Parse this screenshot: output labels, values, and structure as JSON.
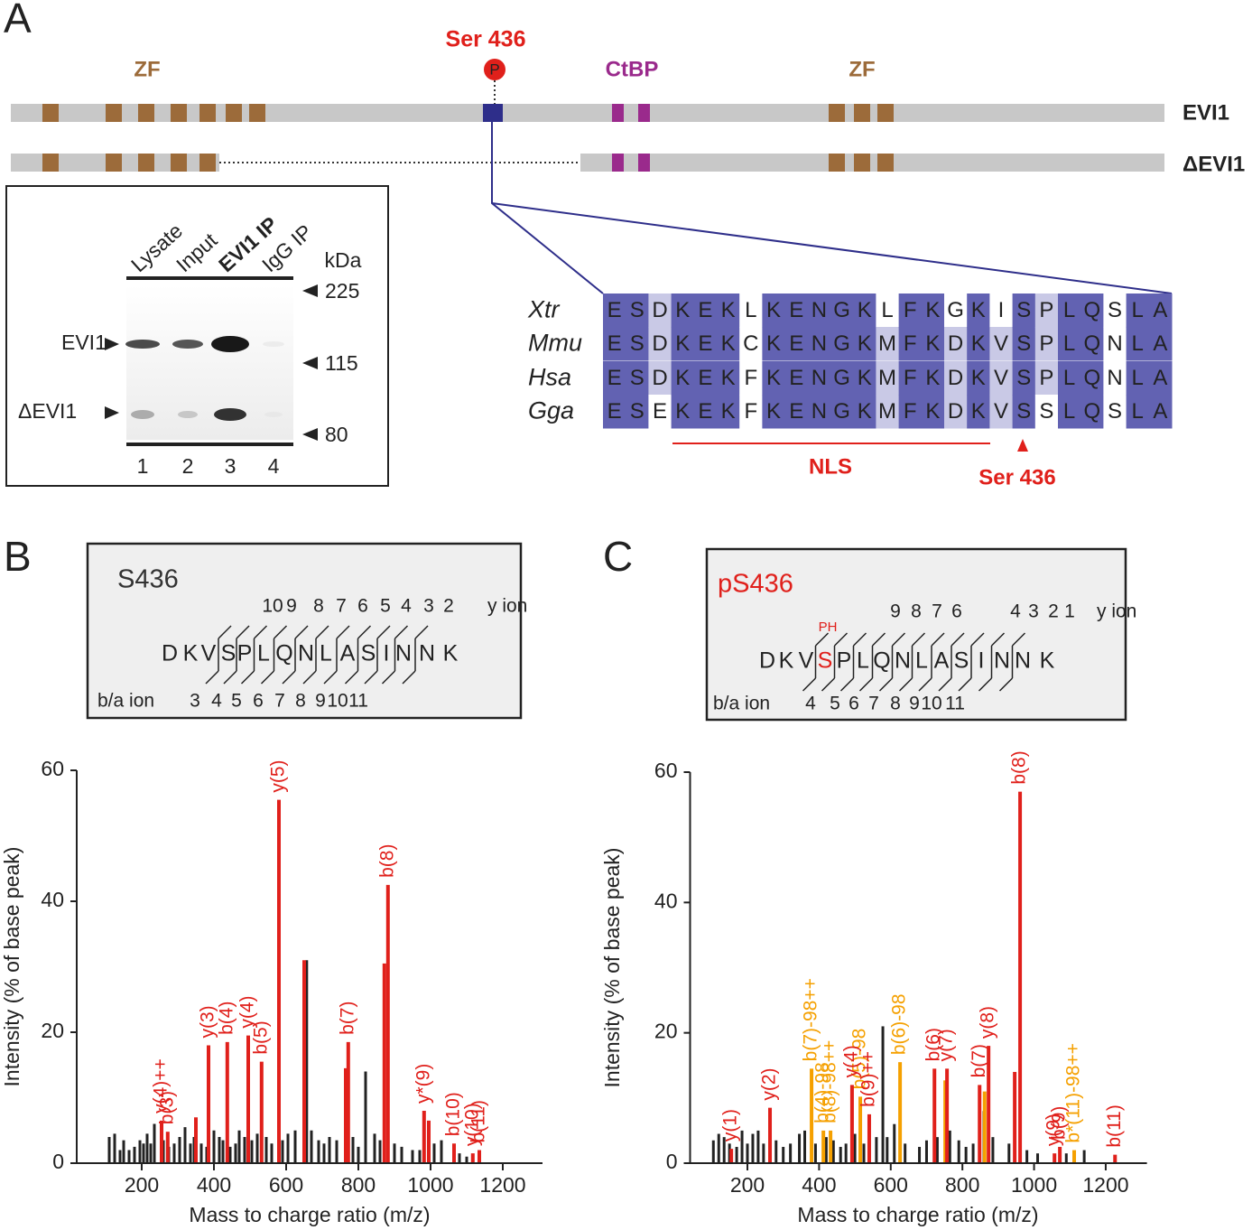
{
  "panel_labels": [
    "A",
    "B",
    "C"
  ],
  "protein": {
    "site": "Ser 436",
    "phospho": "P",
    "zf_left": "ZF",
    "ctbp": "CtBP",
    "zf_right": "ZF",
    "full": "EVI1",
    "short": "ΔEVI1"
  },
  "blot": {
    "lanes": [
      "Lysate",
      "Input",
      "EVI1 IP",
      "IgG IP"
    ],
    "kda": "kDa",
    "markers": [
      225,
      115,
      80
    ],
    "bands": [
      "EVI1",
      "ΔEVI1"
    ],
    "lane_numbers": [
      1,
      2,
      3,
      4
    ]
  },
  "alignment": {
    "species": [
      "Xtr",
      "Mmu",
      "Hsa",
      "Gga"
    ],
    "rows": [
      [
        "E",
        "S",
        "D",
        "K",
        "E",
        "K",
        "L",
        "K",
        "E",
        "N",
        "G",
        "K",
        "L",
        "F",
        "K",
        "G",
        "K",
        "I",
        "S",
        "P",
        "L",
        "Q",
        "S",
        "L",
        "A"
      ],
      [
        "E",
        "S",
        "D",
        "K",
        "E",
        "K",
        "C",
        "K",
        "E",
        "N",
        "G",
        "K",
        "M",
        "F",
        "K",
        "D",
        "K",
        "V",
        "S",
        "P",
        "L",
        "Q",
        "N",
        "L",
        "A"
      ],
      [
        "E",
        "S",
        "D",
        "K",
        "E",
        "K",
        "F",
        "K",
        "E",
        "N",
        "G",
        "K",
        "M",
        "F",
        "K",
        "D",
        "K",
        "V",
        "S",
        "P",
        "L",
        "Q",
        "N",
        "L",
        "A"
      ],
      [
        "E",
        "S",
        "E",
        "K",
        "E",
        "K",
        "F",
        "K",
        "E",
        "N",
        "G",
        "K",
        "M",
        "F",
        "K",
        "D",
        "K",
        "V",
        "S",
        "S",
        "L",
        "Q",
        "S",
        "L",
        "A"
      ]
    ],
    "nls": "NLS",
    "site": "Ser 436"
  },
  "peptides": [
    {
      "title": "S436",
      "title_color": "#333333",
      "sequence": [
        "D",
        "K",
        "V",
        "S",
        "P",
        "L",
        "Q",
        "N",
        "L",
        "A",
        "S",
        "I",
        "N",
        "N",
        "K"
      ],
      "y_numbers": [
        10,
        9,
        8,
        7,
        6,
        5,
        4,
        3,
        2
      ],
      "y_label": "y ion",
      "b_numbers": [
        3,
        4,
        5,
        6,
        7,
        8,
        9,
        10,
        11
      ],
      "b_label": "b/a ion"
    },
    {
      "title": "pS436",
      "title_color": "#e0201b",
      "sequence": [
        "D",
        "K",
        "V",
        {
          "text": "S",
          "color": "#e0201b",
          "mark": "PH"
        },
        "P",
        "L",
        "Q",
        "N",
        "L",
        "A",
        "S",
        "I",
        "N",
        "N",
        "K"
      ],
      "y_numbers": [
        9,
        8,
        7,
        6,
        4,
        3,
        2,
        1
      ],
      "y_label": "y ion",
      "b_numbers": [
        4,
        5,
        6,
        7,
        8,
        9,
        10,
        11
      ],
      "b_label": "b/a ion"
    }
  ],
  "chart_data": [
    {
      "type": "bar",
      "x_label": "Mass to charge ratio (m/z)",
      "y_label": "Intensity (% of base peak)",
      "xlim": [
        20,
        1310
      ],
      "ylim": [
        0,
        60
      ],
      "xticks": [
        200,
        400,
        600,
        800,
        1000,
        1200
      ],
      "yticks": [
        0,
        20,
        40,
        60
      ],
      "series": [
        {
          "color": "#222222",
          "x": [
            110,
            125,
            140,
            150,
            165,
            180,
            195,
            205,
            215,
            225,
            235,
            260,
            275,
            290,
            305,
            320,
            335,
            345,
            365,
            380,
            400,
            415,
            425,
            445,
            460,
            470,
            485,
            505,
            520,
            545,
            560,
            590,
            605,
            625,
            657,
            670,
            690,
            705,
            720,
            740,
            785,
            800,
            820,
            845,
            860,
            900,
            920,
            950,
            970,
            1010,
            1030,
            1080,
            1100
          ],
          "values": [
            4,
            4.5,
            2,
            3.5,
            2,
            2.5,
            3.5,
            3,
            4.5,
            3,
            6,
            3.5,
            2.5,
            3,
            4,
            5.5,
            3,
            4,
            3,
            2.5,
            5,
            4,
            3.5,
            2.5,
            3,
            5,
            4,
            3.5,
            4.5,
            4,
            3,
            3.5,
            4.5,
            5,
            31,
            5,
            3.5,
            3,
            4,
            3.5,
            4,
            2.5,
            14,
            4.5,
            3.5,
            3,
            2.5,
            2,
            2,
            3,
            3.5,
            1.5,
            1
          ]
        },
        {
          "color": "#e0201b",
          "x": [
            255,
            272,
            350,
            385,
            437,
            495,
            532,
            580,
            650,
            765,
            772,
            872,
            882,
            982,
            995,
            1065,
            1117,
            1135
          ],
          "values": [
            6.5,
            4.8,
            7,
            18,
            18.5,
            19.5,
            15.5,
            55.5,
            31,
            14.5,
            18.5,
            30.5,
            42.5,
            8,
            6.5,
            3,
            1.5,
            2
          ],
          "labels": [
            "y(4)++",
            "b(3)",
            null,
            "y(3)",
            "b(4)",
            "y(4)",
            "b(5)",
            "y(5)",
            null,
            null,
            "b(7)",
            null,
            "b(8)",
            "y*(9)",
            null,
            "b(10)",
            "y(10)",
            "b(11)"
          ]
        }
      ]
    },
    {
      "type": "bar",
      "x_label": "Mass to charge ratio (m/z)",
      "y_label": "Intensity (% of base peak)",
      "xlim": [
        40,
        1315
      ],
      "ylim": [
        0,
        60
      ],
      "xticks": [
        200,
        400,
        600,
        800,
        1000,
        1200
      ],
      "yticks": [
        0,
        20,
        40,
        60
      ],
      "series": [
        {
          "color": "#222222",
          "x": [
            105,
            120,
            135,
            150,
            170,
            185,
            200,
            215,
            230,
            245,
            280,
            300,
            320,
            345,
            360,
            390,
            420,
            440,
            460,
            475,
            500,
            525,
            560,
            578,
            590,
            610,
            640,
            680,
            700,
            730,
            765,
            790,
            810,
            830,
            860,
            885,
            930,
            980,
            1010,
            1090,
            1140
          ],
          "values": [
            3.5,
            4.5,
            4,
            3,
            2.5,
            5,
            3,
            4.5,
            5,
            3,
            3.5,
            2.5,
            3,
            4.5,
            5,
            3,
            4,
            3.5,
            2.5,
            3,
            4.5,
            3,
            4,
            21,
            4,
            6,
            3,
            2.5,
            3.5,
            4,
            5,
            3.5,
            2.5,
            3,
            8,
            4,
            3,
            2,
            1.5,
            1.5,
            2
          ]
        },
        {
          "color": "#f5a000",
          "x": [
            379,
            412,
            432,
            515,
            626,
            752,
            862,
            1112
          ],
          "values": [
            14.5,
            5,
            5,
            10.2,
            15.5,
            12.7,
            11,
            2
          ],
          "labels": [
            "b(7)-98++",
            "b(4)-98",
            "b(8)-98++",
            "b(5)-98",
            "b(6)-98",
            null,
            null,
            "b*(11)-98++"
          ]
        },
        {
          "color": "#e0201b",
          "x": [
            155,
            263,
            492,
            540,
            722,
            757,
            848,
            873,
            946,
            961,
            1057,
            1072,
            1226
          ],
          "values": [
            2.2,
            8.5,
            12,
            7.5,
            14.5,
            14.5,
            12,
            18,
            14,
            57,
            1.5,
            2.5,
            1.3
          ],
          "labels": [
            "y(1)",
            "y(2)",
            "y(4)",
            "b(9)++",
            "b(6)",
            "y(7)",
            "b(7)",
            "y(8)",
            null,
            "b(8)",
            "y(9)",
            "b(9)",
            "b(11)"
          ]
        }
      ]
    }
  ]
}
